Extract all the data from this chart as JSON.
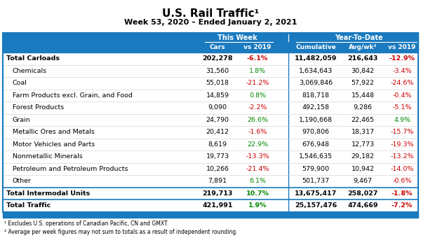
{
  "title": "U.S. Rail Traffic¹",
  "subtitle": "Week 53, 2020 – Ended January 2, 2021",
  "header_bg": "#1a7abf",
  "footnotes": [
    "¹ Excludes U.S. operations of Canadian Pacific, CN and GMXT.",
    "² Average per week figures may not sum to totals as a result of independent rounding."
  ],
  "rows": [
    {
      "label": "Total Carloads",
      "bold": true,
      "sep": true,
      "cars": "202,278",
      "vs_tw": "-6.1%",
      "cumul": "11,482,059",
      "avg": "216,643",
      "vs_ytd": "-12.9%",
      "tw_col": "#cc0000",
      "ytd_col": "#cc0000"
    },
    {
      "label": "Chemicals",
      "bold": false,
      "sep": false,
      "cars": "31,560",
      "vs_tw": "1.8%",
      "cumul": "1,634,643",
      "avg": "30,842",
      "vs_ytd": "-3.4%",
      "tw_col": "#008800",
      "ytd_col": "#cc0000"
    },
    {
      "label": "Coal",
      "bold": false,
      "sep": false,
      "cars": "55,018",
      "vs_tw": "-21.2%",
      "cumul": "3,069,846",
      "avg": "57,922",
      "vs_ytd": "-24.6%",
      "tw_col": "#cc0000",
      "ytd_col": "#cc0000"
    },
    {
      "label": "Farm Products excl. Grain, and Food",
      "bold": false,
      "sep": false,
      "cars": "14,859",
      "vs_tw": "0.8%",
      "cumul": "818,718",
      "avg": "15,448",
      "vs_ytd": "-0.4%",
      "tw_col": "#008800",
      "ytd_col": "#cc0000"
    },
    {
      "label": "Forest Products",
      "bold": false,
      "sep": false,
      "cars": "9,090",
      "vs_tw": "-2.2%",
      "cumul": "492,158",
      "avg": "9,286",
      "vs_ytd": "-5.1%",
      "tw_col": "#cc0000",
      "ytd_col": "#cc0000"
    },
    {
      "label": "Grain",
      "bold": false,
      "sep": false,
      "cars": "24,790",
      "vs_tw": "26.6%",
      "cumul": "1,190,668",
      "avg": "22,465",
      "vs_ytd": "4.9%",
      "tw_col": "#008800",
      "ytd_col": "#008800"
    },
    {
      "label": "Metallic Ores and Metals",
      "bold": false,
      "sep": false,
      "cars": "20,412",
      "vs_tw": "-1.6%",
      "cumul": "970,806",
      "avg": "18,317",
      "vs_ytd": "-15.7%",
      "tw_col": "#cc0000",
      "ytd_col": "#cc0000"
    },
    {
      "label": "Motor Vehicles and Parts",
      "bold": false,
      "sep": false,
      "cars": "8,619",
      "vs_tw": "22.9%",
      "cumul": "676,948",
      "avg": "12,773",
      "vs_ytd": "-19.3%",
      "tw_col": "#008800",
      "ytd_col": "#cc0000"
    },
    {
      "label": "Nonmetallic Minerals",
      "bold": false,
      "sep": false,
      "cars": "19,773",
      "vs_tw": "-13.3%",
      "cumul": "1,546,635",
      "avg": "29,182",
      "vs_ytd": "-13.2%",
      "tw_col": "#cc0000",
      "ytd_col": "#cc0000"
    },
    {
      "label": "Petroleum and Petroleum Products",
      "bold": false,
      "sep": false,
      "cars": "10,266",
      "vs_tw": "-21.4%",
      "cumul": "579,900",
      "avg": "10,942",
      "vs_ytd": "-14.0%",
      "tw_col": "#cc0000",
      "ytd_col": "#cc0000"
    },
    {
      "label": "Other",
      "bold": false,
      "sep": false,
      "cars": "7,891",
      "vs_tw": "6.1%",
      "cumul": "501,737",
      "avg": "9,467",
      "vs_ytd": "-0.6%",
      "tw_col": "#008800",
      "ytd_col": "#cc0000"
    },
    {
      "label": "Total Intermodal Units",
      "bold": true,
      "sep": true,
      "cars": "219,713",
      "vs_tw": "10.7%",
      "cumul": "13,675,417",
      "avg": "258,027",
      "vs_ytd": "-1.8%",
      "tw_col": "#008800",
      "ytd_col": "#cc0000"
    },
    {
      "label": "Total Traffic",
      "bold": true,
      "sep": true,
      "cars": "421,991",
      "vs_tw": "1.9%",
      "cumul": "25,157,476",
      "avg": "474,669",
      "vs_ytd": "-7.2%",
      "tw_col": "#008800",
      "ytd_col": "#cc0000"
    }
  ]
}
